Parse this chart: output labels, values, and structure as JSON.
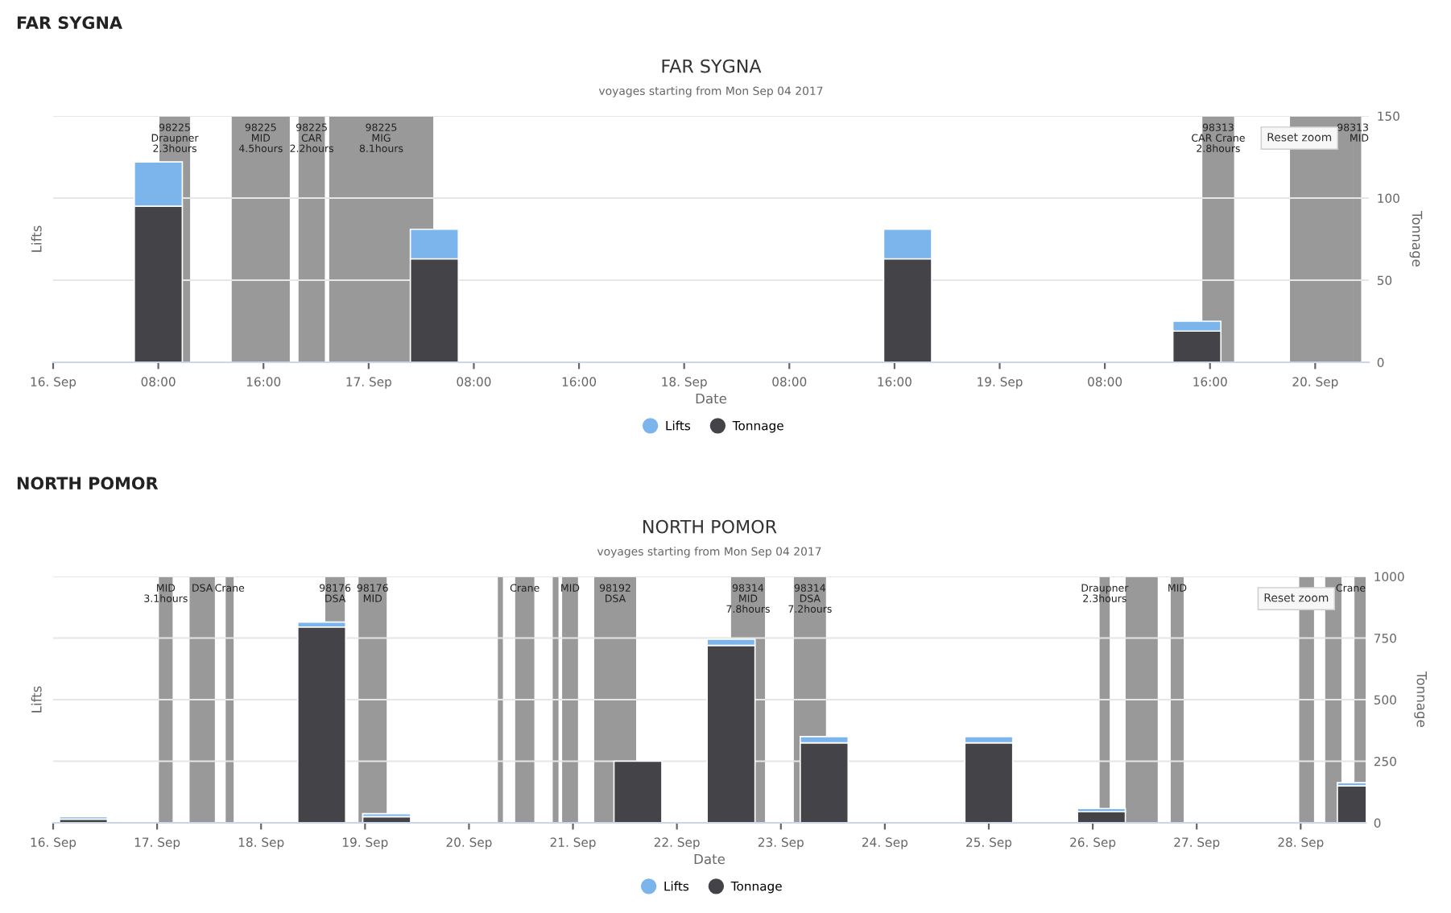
{
  "chart_data": [
    {
      "type": "bar",
      "stacked": true,
      "title": "FAR SYGNA",
      "subtitle": "voyages starting from Mon Sep 04 2017",
      "xlabel": "Date",
      "ylabel": "Lifts",
      "y2label": "Tonnage",
      "annotations": [
        "FAR SYGNA",
        "Reset zoom"
      ],
      "x": [
        "2017-09-16T08:00",
        "2017-09-17T05:00",
        "2017-09-18T17:00",
        "2017-09-19T15:00"
      ],
      "series": [
        {
          "name": "Tonnage",
          "color": "#434348",
          "axis": "y2",
          "values": [
            95,
            63,
            63,
            19
          ]
        },
        {
          "name": "Lifts",
          "color": "#7cb5ec",
          "axis": "y2",
          "values": [
            27,
            18,
            18,
            6
          ]
        }
      ],
      "xlim": [
        "2017-09-16T00:00",
        "2017-09-20T04:05"
      ],
      "xticks": [
        {
          "value": "2017-09-16T00:00",
          "label": "16. Sep"
        },
        {
          "value": "2017-09-16T08:00",
          "label": "08:00"
        },
        {
          "value": "2017-09-16T16:00",
          "label": "16:00"
        },
        {
          "value": "2017-09-17T00:00",
          "label": "17. Sep"
        },
        {
          "value": "2017-09-17T08:00",
          "label": "08:00"
        },
        {
          "value": "2017-09-17T16:00",
          "label": "16:00"
        },
        {
          "value": "2017-09-18T00:00",
          "label": "18. Sep"
        },
        {
          "value": "2017-09-18T08:00",
          "label": "08:00"
        },
        {
          "value": "2017-09-18T16:00",
          "label": "16:00"
        },
        {
          "value": "2017-09-19T00:00",
          "label": "19. Sep"
        },
        {
          "value": "2017-09-19T08:00",
          "label": "08:00"
        },
        {
          "value": "2017-09-19T16:00",
          "label": "16:00"
        },
        {
          "value": "2017-09-20T00:00",
          "label": "20. Sep"
        }
      ],
      "y2lim": [
        0,
        150
      ],
      "y2ticks": [
        0,
        50,
        100,
        150
      ],
      "bands": [
        {
          "axis": "x",
          "from": "2017-09-16T08:05",
          "to": "2017-09-16T10:25",
          "label": "98225\nDraupner\n2.3hours",
          "color": "#999999"
        },
        {
          "axis": "x",
          "from": "2017-09-16T13:35",
          "to": "2017-09-16T18:00",
          "label": "98225\nMID\n4.5hours",
          "color": "#999999"
        },
        {
          "axis": "x",
          "from": "2017-09-16T18:40",
          "to": "2017-09-16T20:40",
          "label": "98225\nCAR\n2.2hours",
          "color": "#999999"
        },
        {
          "axis": "x",
          "from": "2017-09-16T21:00",
          "to": "2017-09-17T04:55",
          "label": "98225\nMIG\n8.1hours",
          "color": "#999999"
        },
        {
          "axis": "x",
          "from": "2017-09-19T15:25",
          "to": "2017-09-19T17:50",
          "label": "98313\nCAR Crane\n2.8hours",
          "color": "#999999"
        },
        {
          "axis": "x",
          "from": "2017-09-19T22:05",
          "to": "2017-09-20T02:55",
          "label": null,
          "color": "#999999"
        },
        {
          "axis": "x",
          "from": "2017-09-20T02:55",
          "to": "2017-09-20T03:30",
          "label": "98313\nMID",
          "color": "#999999"
        }
      ],
      "grid": "y",
      "legend": "bottom"
    },
    {
      "type": "bar",
      "stacked": true,
      "title": "NORTH POMOR",
      "subtitle": "voyages starting from Mon Sep 04 2017",
      "xlabel": "Date",
      "ylabel": "Lifts",
      "y2label": "Tonnage",
      "annotations": [
        "NORTH POMOR",
        "Reset zoom"
      ],
      "x": [
        "2017-09-16T07:00",
        "2017-09-18T14:00",
        "2017-09-19T05:00",
        "2017-09-20T07:00",
        "2017-09-21T15:00",
        "2017-09-22T12:30",
        "2017-09-23T10:00",
        "2017-09-25T00:00",
        "2017-09-26T02:00",
        "2017-09-28T14:00"
      ],
      "series": [
        {
          "name": "Tonnage",
          "color": "#434348",
          "axis": "y2",
          "values": [
            15,
            795,
            25,
            null,
            250,
            720,
            325,
            325,
            45,
            150
          ]
        },
        {
          "name": "Lifts",
          "color": "#7cb5ec",
          "axis": "y2",
          "values": [
            10,
            20,
            12,
            null,
            null,
            25,
            25,
            25,
            13,
            13
          ]
        }
      ],
      "xlim": [
        "2017-09-16T00:00",
        "2017-09-28T15:00"
      ],
      "xticks": [
        {
          "value": "2017-09-16T00:00",
          "label": "16. Sep"
        },
        {
          "value": "2017-09-17T00:00",
          "label": "17. Sep"
        },
        {
          "value": "2017-09-18T00:00",
          "label": "18. Sep"
        },
        {
          "value": "2017-09-19T00:00",
          "label": "19. Sep"
        },
        {
          "value": "2017-09-20T00:00",
          "label": "20. Sep"
        },
        {
          "value": "2017-09-21T00:00",
          "label": "21. Sep"
        },
        {
          "value": "2017-09-22T00:00",
          "label": "22. Sep"
        },
        {
          "value": "2017-09-23T00:00",
          "label": "23. Sep"
        },
        {
          "value": "2017-09-24T00:00",
          "label": "24. Sep"
        },
        {
          "value": "2017-09-25T00:00",
          "label": "25. Sep"
        },
        {
          "value": "2017-09-26T00:00",
          "label": "26. Sep"
        },
        {
          "value": "2017-09-27T00:00",
          "label": "27. Sep"
        },
        {
          "value": "2017-09-28T00:00",
          "label": "28. Sep"
        }
      ],
      "y2lim": [
        0,
        1000
      ],
      "y2ticks": [
        0,
        250,
        500,
        750,
        1000
      ],
      "bands": [
        {
          "axis": "x",
          "from": "2017-09-17T00:25",
          "to": "2017-09-17T03:35",
          "label": "MID\n3.1hours",
          "color": "#999999"
        },
        {
          "axis": "x",
          "from": "2017-09-17T07:30",
          "to": "2017-09-17T13:20",
          "label": "DSA",
          "color": "#999999"
        },
        {
          "axis": "x",
          "from": "2017-09-17T15:50",
          "to": "2017-09-17T17:40",
          "label": "Crane",
          "color": "#999999"
        },
        {
          "axis": "x",
          "from": "2017-09-18T14:50",
          "to": "2017-09-18T19:20",
          "label": "98176\nDSA",
          "color": "#999999"
        },
        {
          "axis": "x",
          "from": "2017-09-18T22:30",
          "to": "2017-09-19T05:00",
          "label": "98176\nMID",
          "color": "#999999"
        },
        {
          "axis": "x",
          "from": "2017-09-20T06:40",
          "to": "2017-09-20T07:50",
          "label": null,
          "color": "#999999"
        },
        {
          "axis": "x",
          "from": "2017-09-20T10:40",
          "to": "2017-09-20T15:05",
          "label": "Crane",
          "color": "#999999"
        },
        {
          "axis": "x",
          "from": "2017-09-20T19:20",
          "to": "2017-09-20T20:40",
          "label": null,
          "color": "#999999"
        },
        {
          "axis": "x",
          "from": "2017-09-20T21:30",
          "to": "2017-09-21T01:10",
          "label": "MID",
          "color": "#999999"
        },
        {
          "axis": "x",
          "from": "2017-09-21T04:55",
          "to": "2017-09-21T14:35",
          "label": "98192\nDSA",
          "color": "#999999"
        },
        {
          "axis": "x",
          "from": "2017-09-22T12:30",
          "to": "2017-09-22T20:20",
          "label": "98314\nMID\n7.8hours",
          "color": "#999999"
        },
        {
          "axis": "x",
          "from": "2017-09-23T03:00",
          "to": "2017-09-23T10:25",
          "label": "98314\nDSA\n7.2hours",
          "color": "#999999"
        },
        {
          "axis": "x",
          "from": "2017-09-26T01:35",
          "to": "2017-09-26T03:55",
          "label": "Draupner\n2.3hours",
          "color": "#999999"
        },
        {
          "axis": "x",
          "from": "2017-09-26T07:35",
          "to": "2017-09-26T15:00",
          "label": null,
          "color": "#999999"
        },
        {
          "axis": "x",
          "from": "2017-09-26T18:00",
          "to": "2017-09-26T21:00",
          "label": "MID",
          "color": "#999999"
        },
        {
          "axis": "x",
          "from": "2017-09-27T23:40",
          "to": "2017-09-28T03:05",
          "label": null,
          "color": "#999999"
        },
        {
          "axis": "x",
          "from": "2017-09-28T05:40",
          "to": "2017-09-28T09:25",
          "label": null,
          "color": "#999999"
        },
        {
          "axis": "x",
          "from": "2017-09-28T12:25",
          "to": "2017-09-28T15:00",
          "label": "Crane",
          "color": "#999999"
        }
      ],
      "grid": "y",
      "legend": "bottom"
    }
  ]
}
